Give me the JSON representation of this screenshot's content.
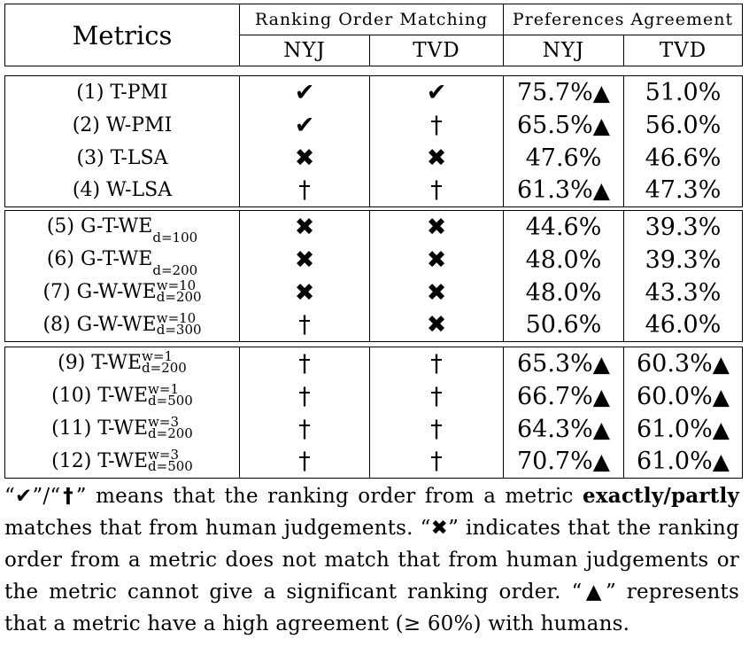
{
  "header": {
    "metrics": "Metrics",
    "group1": "Ranking Order Matching",
    "group2": "Preferences Agreement",
    "sub": [
      "NYJ",
      "TVD",
      "NYJ",
      "TVD"
    ]
  },
  "rows": [
    {
      "label": "(1) T-PMI",
      "rom_nyj": "✔",
      "rom_tvd": "✔",
      "pa_nyj": "75.7%",
      "pa_nyj_tri": "▲",
      "pa_tvd": "51.0%",
      "pa_tvd_tri": ""
    },
    {
      "label": "(2) W-PMI",
      "rom_nyj": "✔",
      "rom_tvd": "†",
      "pa_nyj": "65.5%",
      "pa_nyj_tri": "▲",
      "pa_tvd": "56.0%",
      "pa_tvd_tri": ""
    },
    {
      "label": "(3) T-LSA",
      "rom_nyj": "✖",
      "rom_tvd": "✖",
      "pa_nyj": "47.6%",
      "pa_nyj_tri": "",
      "pa_tvd": "46.6%",
      "pa_tvd_tri": ""
    },
    {
      "label": "(4) W-LSA",
      "rom_nyj": "†",
      "rom_tvd": "†",
      "pa_nyj": "61.3%",
      "pa_nyj_tri": "▲",
      "pa_tvd": "47.3%",
      "pa_tvd_tri": ""
    },
    {
      "label": "(5) G-T-WE",
      "sub": "d=100",
      "sup": "",
      "rom_nyj": "✖",
      "rom_tvd": "✖",
      "pa_nyj": "44.6%",
      "pa_nyj_tri": "",
      "pa_tvd": "39.3%",
      "pa_tvd_tri": ""
    },
    {
      "label": "(6) G-T-WE",
      "sub": "d=200",
      "sup": "",
      "rom_nyj": "✖",
      "rom_tvd": "✖",
      "pa_nyj": "48.0%",
      "pa_nyj_tri": "",
      "pa_tvd": "39.3%",
      "pa_tvd_tri": ""
    },
    {
      "label": "(7) G-W-WE",
      "sub": "d=200",
      "sup": "w=10",
      "rom_nyj": "✖",
      "rom_tvd": "✖",
      "pa_nyj": "48.0%",
      "pa_nyj_tri": "",
      "pa_tvd": "43.3%",
      "pa_tvd_tri": ""
    },
    {
      "label": "(8) G-W-WE",
      "sub": "d=300",
      "sup": "w=10",
      "rom_nyj": "†",
      "rom_tvd": "✖",
      "pa_nyj": "50.6%",
      "pa_nyj_tri": "",
      "pa_tvd": "46.0%",
      "pa_tvd_tri": ""
    },
    {
      "label": "(9) T-WE",
      "sub": "d=200",
      "sup": "w=1",
      "rom_nyj": "†",
      "rom_tvd": "†",
      "pa_nyj": "65.3%",
      "pa_nyj_tri": "▲",
      "pa_tvd": "60.3%",
      "pa_tvd_tri": "▲"
    },
    {
      "label": "(10) T-WE",
      "sub": "d=500",
      "sup": "w=1",
      "rom_nyj": "†",
      "rom_tvd": "†",
      "pa_nyj": "66.7%",
      "pa_nyj_tri": "▲",
      "pa_tvd": "60.0%",
      "pa_tvd_tri": "▲"
    },
    {
      "label": "(11) T-WE",
      "sub": "d=200",
      "sup": "w=3",
      "rom_nyj": "†",
      "rom_tvd": "†",
      "pa_nyj": "64.3%",
      "pa_nyj_tri": "▲",
      "pa_tvd": "61.0%",
      "pa_tvd_tri": "▲"
    },
    {
      "label": "(12) T-WE",
      "sub": "d=500",
      "sup": "w=3",
      "rom_nyj": "†",
      "rom_tvd": "†",
      "pa_nyj": "70.7%",
      "pa_nyj_tri": "▲",
      "pa_tvd": "61.0%",
      "pa_tvd_tri": "▲"
    }
  ],
  "caption": {
    "q1_open": "“",
    "check": "✔",
    "q1_mid": "”/“",
    "dagger": "†",
    "q1_close": "” means that the ranking order from a metric ",
    "bold": "exactly/partly",
    "p2": " matches that from human judgements. “",
    "cross": "✖",
    "p3": "” indicates that the ranking order from a metric does not match that from human judgements or the metric cannot give a significant ranking order. “",
    "tri": "▲",
    "p4": "” represents that a metric have a high agreement (≥ 60%) with humans."
  }
}
